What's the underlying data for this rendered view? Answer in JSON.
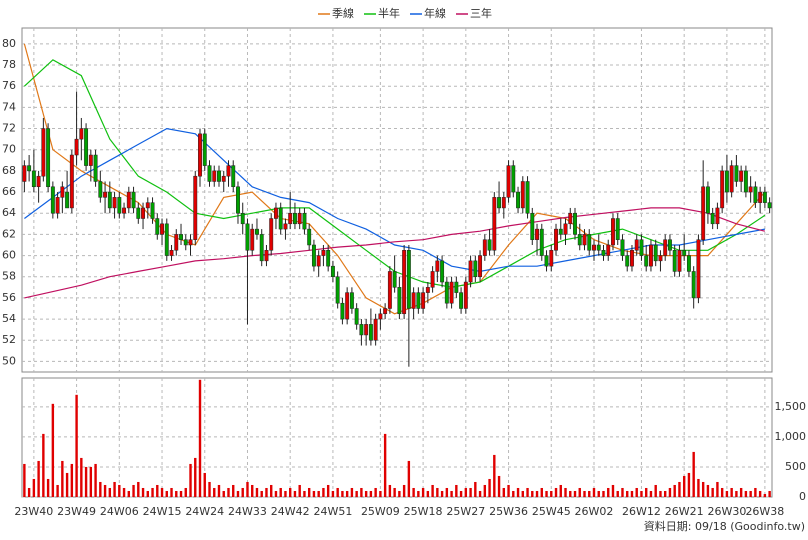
{
  "chart_data": {
    "type": "candlestick",
    "legend": [
      "季線",
      "半年",
      "年線",
      "三年"
    ],
    "footer": "資料日期: 09/18 (Goodinfo.tw)",
    "up_color": "#e00000",
    "down_color": "#00a000",
    "volume_color": "#e00000",
    "grid": true,
    "ylim": [
      49,
      81.5
    ],
    "yticks": [
      50,
      52,
      54,
      56,
      58,
      60,
      62,
      64,
      66,
      68,
      70,
      72,
      74,
      76,
      78,
      80
    ],
    "y2lim": [
      0,
      1980
    ],
    "y2ticks": [
      0,
      500,
      {
        "value": 1000,
        "label": "1,000"
      },
      {
        "value": 1500,
        "label": "1,500"
      }
    ],
    "xticks": [
      {
        "value": 2,
        "label": "23W40"
      },
      {
        "value": 11,
        "label": "23W49"
      },
      {
        "value": 20,
        "label": "24W06"
      },
      {
        "value": 29,
        "label": "24W15"
      },
      {
        "value": 38,
        "label": "24W24"
      },
      {
        "value": 47,
        "label": "24W33"
      },
      {
        "value": 56,
        "label": "24W42"
      },
      {
        "value": 65,
        "label": "24W51"
      },
      {
        "value": 75,
        "label": "25W09"
      },
      {
        "value": 84,
        "label": "25W18"
      },
      {
        "value": 93,
        "label": "25W27"
      },
      {
        "value": 102,
        "label": "25W36"
      },
      {
        "value": 111,
        "label": "25W45"
      },
      {
        "value": 120,
        "label": "26W02"
      },
      {
        "value": 130,
        "label": "26W12"
      },
      {
        "value": 139,
        "label": "26W21"
      },
      {
        "value": 148,
        "label": "26W30"
      },
      {
        "value": 156,
        "label": "26W38"
      }
    ],
    "ohlc": [
      [
        67,
        69,
        66,
        68.5
      ],
      [
        68.5,
        69.5,
        67,
        68
      ],
      [
        68,
        70,
        66,
        66.5
      ],
      [
        66.5,
        68,
        65,
        67.5
      ],
      [
        67.5,
        73,
        67,
        72
      ],
      [
        72,
        72.5,
        66,
        66.5
      ],
      [
        66.5,
        67,
        63.5,
        64
      ],
      [
        64,
        66,
        63.5,
        65.5
      ],
      [
        65.5,
        67,
        64,
        66.5
      ],
      [
        66,
        68,
        64.5,
        64.5
      ],
      [
        64.5,
        70,
        64,
        69.5
      ],
      [
        69.5,
        75.5,
        68.5,
        71
      ],
      [
        71,
        73,
        69,
        72
      ],
      [
        72,
        72.5,
        68,
        68.5
      ],
      [
        68.5,
        70,
        67,
        69.5
      ],
      [
        69.5,
        70,
        66.5,
        67
      ],
      [
        67,
        68,
        65,
        65.5
      ],
      [
        65.5,
        67,
        64,
        66
      ],
      [
        66,
        67,
        64,
        64.5
      ],
      [
        64.5,
        66,
        63.5,
        65.5
      ],
      [
        65.5,
        66,
        63.5,
        64
      ],
      [
        64,
        65,
        63.5,
        64.5
      ],
      [
        64.5,
        66.5,
        64,
        66
      ],
      [
        66,
        66.5,
        64,
        64.5
      ],
      [
        64.5,
        65,
        63,
        63.5
      ],
      [
        63.5,
        65,
        62.5,
        64.5
      ],
      [
        64.5,
        65.5,
        63.5,
        65
      ],
      [
        65,
        65.5,
        63,
        63.5
      ],
      [
        63.5,
        64,
        61.5,
        62
      ],
      [
        62,
        63.5,
        61,
        63
      ],
      [
        63,
        63.5,
        59.5,
        60
      ],
      [
        60,
        61,
        59.5,
        60.5
      ],
      [
        60.5,
        62.5,
        60,
        62
      ],
      [
        62,
        63,
        61,
        61.5
      ],
      [
        61.5,
        62,
        60.5,
        61
      ],
      [
        61,
        62,
        60,
        61.5
      ],
      [
        61.5,
        68,
        61,
        67.5
      ],
      [
        67.5,
        72,
        66.5,
        71.5
      ],
      [
        71.5,
        72,
        68,
        68.5
      ],
      [
        68.5,
        69,
        66.5,
        67
      ],
      [
        67,
        68.5,
        66.5,
        68
      ],
      [
        68,
        68.5,
        66.5,
        67
      ],
      [
        67,
        68,
        66,
        67.5
      ],
      [
        67.5,
        69,
        66.5,
        68.5
      ],
      [
        68.5,
        69,
        66,
        66.5
      ],
      [
        66.5,
        67,
        63,
        64
      ],
      [
        64,
        65,
        62,
        63
      ],
      [
        63,
        63.5,
        53.5,
        60.5
      ],
      [
        60.5,
        63,
        60,
        62.5
      ],
      [
        62.5,
        63.5,
        61.5,
        62
      ],
      [
        62,
        62.5,
        59,
        59.5
      ],
      [
        59.5,
        61,
        59,
        60.5
      ],
      [
        60.5,
        64,
        60,
        63.5
      ],
      [
        63.5,
        65,
        62.5,
        64.5
      ],
      [
        64.5,
        65,
        62,
        62.5
      ],
      [
        62.5,
        63.5,
        61.5,
        63
      ],
      [
        63,
        66,
        62.5,
        64
      ],
      [
        64,
        65,
        62.5,
        63
      ],
      [
        63,
        64.5,
        62.5,
        64
      ],
      [
        64,
        64.5,
        62,
        62.5
      ],
      [
        62.5,
        63,
        60.5,
        61
      ],
      [
        61,
        61.5,
        58.5,
        59
      ],
      [
        59,
        60.5,
        58,
        60
      ],
      [
        60,
        61,
        59,
        60.5
      ],
      [
        60.5,
        61,
        58.5,
        59
      ],
      [
        59,
        59.5,
        57.5,
        58
      ],
      [
        58,
        58.5,
        55,
        55.5
      ],
      [
        55.5,
        56,
        53.5,
        54
      ],
      [
        54,
        57,
        53.5,
        56.5
      ],
      [
        56.5,
        57,
        54.5,
        55
      ],
      [
        55,
        55.5,
        53,
        53.5
      ],
      [
        53.5,
        54,
        51.5,
        52.5
      ],
      [
        52.5,
        54,
        51.5,
        53.5
      ],
      [
        53.5,
        55,
        51.5,
        52
      ],
      [
        52,
        54.5,
        51.5,
        54
      ],
      [
        54,
        55,
        53,
        54.5
      ],
      [
        54.5,
        55.5,
        54,
        55
      ],
      [
        55,
        59,
        54.5,
        58.5
      ],
      [
        58.5,
        60,
        56.5,
        57
      ],
      [
        57,
        58,
        54,
        54.5
      ],
      [
        54.5,
        61,
        54,
        60.5
      ],
      [
        60.5,
        61,
        49.5,
        55
      ],
      [
        55,
        57,
        54,
        56.5
      ],
      [
        56.5,
        57,
        54.5,
        55
      ],
      [
        55,
        57,
        54.5,
        56.5
      ],
      [
        56.5,
        57.5,
        55.5,
        57
      ],
      [
        57,
        59,
        56.5,
        58.5
      ],
      [
        58.5,
        60,
        57.5,
        59.5
      ],
      [
        59.5,
        60,
        57,
        57.5
      ],
      [
        57.5,
        58,
        55,
        55.5
      ],
      [
        55.5,
        58,
        55,
        57.5
      ],
      [
        57.5,
        58,
        56,
        56.5
      ],
      [
        56.5,
        57,
        54.5,
        55
      ],
      [
        55,
        58,
        54.5,
        57.5
      ],
      [
        57.5,
        60,
        57,
        59.5
      ],
      [
        59.5,
        60,
        57.5,
        58
      ],
      [
        58,
        60.5,
        57.5,
        60
      ],
      [
        60,
        62,
        59.5,
        61.5
      ],
      [
        61.5,
        62.5,
        60,
        60.5
      ],
      [
        60.5,
        66,
        60,
        65.5
      ],
      [
        65.5,
        67,
        64,
        64.5
      ],
      [
        64.5,
        66,
        63.5,
        65.5
      ],
      [
        65.5,
        69,
        65,
        68.5
      ],
      [
        68.5,
        69,
        65.5,
        66
      ],
      [
        66,
        66.5,
        64,
        64.5
      ],
      [
        64.5,
        67.5,
        64,
        67
      ],
      [
        67,
        67.5,
        63.5,
        64
      ],
      [
        64,
        64.5,
        61,
        61.5
      ],
      [
        61.5,
        63,
        60,
        62.5
      ],
      [
        62.5,
        63,
        59.5,
        60
      ],
      [
        60,
        60.5,
        58.5,
        59
      ],
      [
        59,
        61,
        58.5,
        60.5
      ],
      [
        60.5,
        63,
        60,
        62.5
      ],
      [
        62.5,
        63.5,
        61.5,
        62
      ],
      [
        62,
        63.5,
        61,
        63
      ],
      [
        63,
        64.5,
        62.5,
        64
      ],
      [
        64,
        64.5,
        61.5,
        62
      ],
      [
        62,
        63,
        60.5,
        61
      ],
      [
        61,
        62.5,
        60.5,
        62
      ],
      [
        62,
        62.5,
        60,
        60.5
      ],
      [
        60.5,
        61.5,
        59.5,
        61
      ],
      [
        61,
        62,
        60,
        60.5
      ],
      [
        60.5,
        61,
        59.5,
        60
      ],
      [
        60,
        61.5,
        59.5,
        61
      ],
      [
        61,
        64,
        60.5,
        63.5
      ],
      [
        63.5,
        64,
        61,
        61.5
      ],
      [
        61.5,
        62,
        59.5,
        60
      ],
      [
        60,
        60.5,
        58.5,
        59
      ],
      [
        59,
        61,
        58.5,
        60.5
      ],
      [
        60.5,
        62,
        60,
        61.5
      ],
      [
        61.5,
        62,
        59.5,
        60
      ],
      [
        60,
        61,
        58.5,
        59
      ],
      [
        59,
        61.5,
        58.5,
        61
      ],
      [
        61,
        61.5,
        59,
        59.5
      ],
      [
        59.5,
        60.5,
        58.5,
        60
      ],
      [
        60,
        62,
        59.5,
        61.5
      ],
      [
        61.5,
        62,
        60,
        60.5
      ],
      [
        60.5,
        61,
        58,
        58.5
      ],
      [
        58.5,
        61,
        58,
        60.5
      ],
      [
        60.5,
        62,
        59.5,
        60
      ],
      [
        60,
        60.5,
        58,
        58.5
      ],
      [
        58.5,
        59,
        55,
        56
      ],
      [
        56,
        62,
        55.5,
        61.5
      ],
      [
        61.5,
        69,
        61,
        66.5
      ],
      [
        66.5,
        67,
        63,
        64
      ],
      [
        64,
        64.5,
        62.5,
        63
      ],
      [
        63,
        65,
        62.5,
        64.5
      ],
      [
        64.5,
        68.5,
        64,
        68
      ],
      [
        68,
        69.5,
        65,
        66
      ],
      [
        66,
        69,
        65.5,
        68.5
      ],
      [
        68.5,
        69.5,
        66.5,
        67
      ],
      [
        67,
        68.5,
        66,
        68
      ],
      [
        68,
        68.5,
        65.5,
        66
      ],
      [
        66,
        67.5,
        65,
        66.5
      ],
      [
        66.5,
        67,
        64.5,
        65
      ],
      [
        65,
        66.5,
        64,
        66
      ],
      [
        66,
        66.5,
        64.5,
        65
      ],
      [
        65,
        65.5,
        64,
        64.5
      ]
    ],
    "volume": [
      550,
      150,
      300,
      600,
      1050,
      300,
      1550,
      200,
      600,
      400,
      550,
      1700,
      650,
      500,
      500,
      550,
      250,
      200,
      150,
      250,
      200,
      150,
      100,
      200,
      250,
      150,
      100,
      150,
      200,
      150,
      100,
      150,
      100,
      100,
      150,
      550,
      650,
      1950,
      400,
      250,
      150,
      200,
      100,
      150,
      200,
      100,
      150,
      250,
      200,
      150,
      100,
      150,
      200,
      100,
      150,
      100,
      150,
      100,
      200,
      100,
      150,
      100,
      100,
      150,
      200,
      100,
      150,
      100,
      100,
      150,
      100,
      150,
      100,
      100,
      150,
      100,
      1050,
      200,
      150,
      100,
      200,
      600,
      150,
      100,
      150,
      100,
      200,
      150,
      100,
      150,
      100,
      200,
      100,
      150,
      150,
      250,
      100,
      200,
      300,
      700,
      350,
      150,
      200,
      100,
      150,
      100,
      150,
      100,
      100,
      150,
      100,
      100,
      150,
      200,
      150,
      100,
      100,
      150,
      100,
      100,
      150,
      100,
      100,
      150,
      200,
      100,
      150,
      100,
      100,
      150,
      100,
      150,
      100,
      200,
      100,
      100,
      150,
      200,
      250,
      350,
      400,
      750,
      300,
      250,
      200,
      150,
      250,
      150,
      100,
      150,
      100,
      150,
      100,
      100,
      150,
      100,
      50,
      100
    ],
    "ma_x": [
      0,
      6,
      12,
      18,
      24,
      30,
      36,
      42,
      48,
      54,
      60,
      66,
      72,
      78,
      84,
      90,
      96,
      102,
      108,
      114,
      120,
      126,
      132,
      138,
      144,
      150,
      156
    ],
    "series": [
      {
        "name": "季線",
        "color": "#e07818",
        "values": [
          80,
          70,
          68,
          66.5,
          65,
          62,
          61,
          65.5,
          66,
          63.5,
          63,
          60,
          56,
          54.5,
          55.5,
          57,
          57.5,
          61,
          64,
          63.5,
          61.5,
          60.5,
          60,
          60,
          60,
          63,
          66
        ]
      },
      {
        "name": "半年",
        "color": "#10c010",
        "values": [
          76,
          78.5,
          77,
          71,
          67.5,
          66,
          64,
          63.5,
          64,
          64.5,
          64.5,
          62.5,
          60.5,
          58.5,
          57.5,
          57,
          57.5,
          59,
          60.5,
          61.5,
          62,
          62.5,
          61.5,
          60.5,
          60.5,
          62,
          63.8
        ]
      },
      {
        "name": "年線",
        "color": "#1060e0",
        "values": [
          63.5,
          65.5,
          67.5,
          69,
          70.5,
          72,
          71.5,
          69,
          66.5,
          65.5,
          65,
          63.5,
          62.5,
          61,
          60.5,
          59,
          58.5,
          59,
          59,
          59.5,
          60,
          60.5,
          61,
          61,
          61.5,
          62,
          62.5
        ]
      },
      {
        "name": "三年",
        "color": "#c01060",
        "values": [
          56,
          56.6,
          57.2,
          58,
          58.5,
          59,
          59.5,
          59.7,
          60,
          60.2,
          60.5,
          60.8,
          61,
          61.3,
          61.5,
          62,
          62.3,
          62.8,
          63.2,
          63.6,
          63.9,
          64.2,
          64.5,
          64.5,
          64,
          63,
          62.3
        ]
      }
    ]
  }
}
